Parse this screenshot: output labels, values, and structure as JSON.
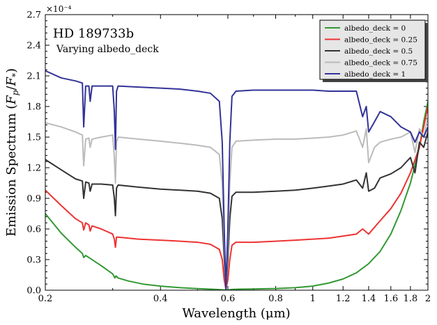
{
  "chart_data": {
    "type": "line",
    "title": "HD 189733b",
    "subtitle": "Varying albedo_deck",
    "xlabel": "Wavelength (μm)",
    "ylabel": "Emission Spectrum (F_p/F_*)",
    "y_multiplier": "×10⁻⁴",
    "x_scale": "log",
    "xlim": [
      0.2,
      2.0
    ],
    "ylim": [
      0,
      2.7
    ],
    "x_ticks": [
      0.2,
      0.4,
      0.6,
      0.8,
      1,
      1.2,
      1.4,
      1.6,
      1.8,
      2
    ],
    "x_tick_labels": [
      "0.2",
      "0.4",
      "0.6",
      "0.8",
      "1",
      "1.2",
      "1.4",
      "1.6",
      "1.8",
      "2"
    ],
    "y_ticks": [
      0,
      0.3,
      0.6,
      0.9,
      1.2,
      1.5,
      1.8,
      2.1,
      2.4,
      2.7
    ],
    "y_tick_labels": [
      "0.0",
      "0.3",
      "0.6",
      "0.9",
      "1.2",
      "1.5",
      "1.8",
      "2.1",
      "2.4",
      "2.7"
    ],
    "legend_position": "top-right",
    "grid": false,
    "series": [
      {
        "name": "albedo_deck = 0",
        "color": "#339933",
        "x": [
          0.2,
          0.22,
          0.24,
          0.25,
          0.252,
          0.255,
          0.26,
          0.28,
          0.3,
          0.304,
          0.306,
          0.31,
          0.33,
          0.36,
          0.4,
          0.45,
          0.5,
          0.54,
          0.57,
          0.585,
          0.593,
          0.6,
          0.615,
          0.64,
          0.7,
          0.8,
          0.9,
          1.0,
          1.1,
          1.2,
          1.3,
          1.4,
          1.5,
          1.6,
          1.7,
          1.8,
          1.9,
          1.95,
          2.0
        ],
        "y": [
          0.75,
          0.56,
          0.42,
          0.36,
          0.32,
          0.34,
          0.32,
          0.24,
          0.16,
          0.12,
          0.14,
          0.12,
          0.09,
          0.06,
          0.04,
          0.025,
          0.015,
          0.01,
          0.006,
          0.003,
          0.001,
          0.003,
          0.008,
          0.01,
          0.012,
          0.016,
          0.025,
          0.04,
          0.07,
          0.11,
          0.17,
          0.26,
          0.38,
          0.55,
          0.78,
          1.05,
          1.4,
          1.65,
          1.85
        ]
      },
      {
        "name": "albedo_deck = 0.25",
        "color": "#ee3333",
        "x": [
          0.2,
          0.22,
          0.24,
          0.25,
          0.252,
          0.255,
          0.26,
          0.262,
          0.265,
          0.28,
          0.3,
          0.303,
          0.305,
          0.307,
          0.31,
          0.35,
          0.4,
          0.45,
          0.5,
          0.54,
          0.57,
          0.58,
          0.587,
          0.593,
          0.6,
          0.607,
          0.615,
          0.63,
          0.7,
          0.8,
          0.9,
          1.0,
          1.1,
          1.2,
          1.3,
          1.35,
          1.4,
          1.5,
          1.6,
          1.7,
          1.8,
          1.9,
          1.95,
          2.0
        ],
        "y": [
          0.98,
          0.83,
          0.7,
          0.66,
          0.59,
          0.66,
          0.64,
          0.58,
          0.63,
          0.6,
          0.55,
          0.5,
          0.42,
          0.52,
          0.52,
          0.5,
          0.49,
          0.48,
          0.47,
          0.45,
          0.4,
          0.3,
          0.1,
          0.01,
          0.1,
          0.3,
          0.44,
          0.47,
          0.47,
          0.48,
          0.49,
          0.5,
          0.51,
          0.53,
          0.55,
          0.6,
          0.55,
          0.68,
          0.8,
          0.95,
          1.15,
          1.4,
          1.6,
          1.8
        ]
      },
      {
        "name": "albedo_deck = 0.5",
        "color": "#333333",
        "x": [
          0.2,
          0.22,
          0.24,
          0.25,
          0.252,
          0.255,
          0.26,
          0.262,
          0.265,
          0.28,
          0.3,
          0.303,
          0.305,
          0.307,
          0.31,
          0.35,
          0.4,
          0.45,
          0.5,
          0.54,
          0.57,
          0.58,
          0.587,
          0.593,
          0.6,
          0.607,
          0.615,
          0.63,
          0.7,
          0.8,
          0.9,
          1.0,
          1.1,
          1.2,
          1.3,
          1.35,
          1.38,
          1.4,
          1.45,
          1.5,
          1.6,
          1.7,
          1.8,
          1.85,
          1.9,
          1.95,
          2.0
        ],
        "y": [
          1.28,
          1.18,
          1.09,
          1.07,
          0.9,
          1.06,
          1.05,
          0.97,
          1.04,
          1.04,
          1.03,
          0.9,
          0.73,
          1.0,
          1.03,
          1.01,
          0.99,
          0.98,
          0.97,
          0.95,
          0.9,
          0.7,
          0.3,
          0.01,
          0.3,
          0.7,
          0.92,
          0.96,
          0.96,
          0.97,
          0.98,
          1.0,
          1.02,
          1.04,
          1.08,
          1.0,
          1.15,
          0.97,
          1.0,
          1.1,
          1.14,
          1.2,
          1.3,
          1.15,
          1.45,
          1.4,
          1.55
        ]
      },
      {
        "name": "albedo_deck = 0.75",
        "color": "#bbbbbb",
        "x": [
          0.2,
          0.22,
          0.24,
          0.25,
          0.252,
          0.255,
          0.26,
          0.262,
          0.265,
          0.28,
          0.3,
          0.303,
          0.305,
          0.307,
          0.31,
          0.35,
          0.4,
          0.45,
          0.5,
          0.54,
          0.57,
          0.58,
          0.587,
          0.593,
          0.6,
          0.607,
          0.615,
          0.63,
          0.7,
          0.8,
          0.9,
          1.0,
          1.1,
          1.2,
          1.3,
          1.35,
          1.38,
          1.4,
          1.45,
          1.5,
          1.6,
          1.7,
          1.8,
          1.85,
          1.9,
          1.95,
          2.0
        ],
        "y": [
          1.64,
          1.6,
          1.55,
          1.52,
          1.22,
          1.48,
          1.49,
          1.4,
          1.48,
          1.5,
          1.52,
          1.3,
          1.05,
          1.45,
          1.5,
          1.48,
          1.46,
          1.44,
          1.42,
          1.4,
          1.33,
          1.05,
          0.45,
          0.01,
          0.45,
          1.05,
          1.4,
          1.46,
          1.47,
          1.48,
          1.48,
          1.49,
          1.5,
          1.52,
          1.56,
          1.4,
          1.58,
          1.25,
          1.4,
          1.45,
          1.48,
          1.5,
          1.55,
          1.35,
          1.58,
          1.5,
          1.7
        ]
      },
      {
        "name": "albedo_deck = 1",
        "color": "#333399",
        "x": [
          0.2,
          0.22,
          0.24,
          0.25,
          0.252,
          0.255,
          0.26,
          0.262,
          0.265,
          0.28,
          0.3,
          0.303,
          0.305,
          0.307,
          0.31,
          0.35,
          0.4,
          0.45,
          0.5,
          0.54,
          0.57,
          0.58,
          0.587,
          0.593,
          0.6,
          0.607,
          0.615,
          0.63,
          0.7,
          0.8,
          0.9,
          1.0,
          1.1,
          1.2,
          1.3,
          1.35,
          1.38,
          1.4,
          1.45,
          1.5,
          1.6,
          1.7,
          1.8,
          1.85,
          1.9,
          1.95,
          2.0
        ],
        "y": [
          2.15,
          2.08,
          2.05,
          2.03,
          1.6,
          2.0,
          2.0,
          1.85,
          2.0,
          2.0,
          2.0,
          1.75,
          1.38,
          1.95,
          2.0,
          1.99,
          1.98,
          1.97,
          1.95,
          1.93,
          1.85,
          1.45,
          0.6,
          0.01,
          0.6,
          1.45,
          1.9,
          1.95,
          1.96,
          1.96,
          1.96,
          1.96,
          1.95,
          1.95,
          1.95,
          1.7,
          1.8,
          1.55,
          1.65,
          1.75,
          1.7,
          1.6,
          1.55,
          1.45,
          1.55,
          1.5,
          1.6
        ]
      }
    ]
  }
}
